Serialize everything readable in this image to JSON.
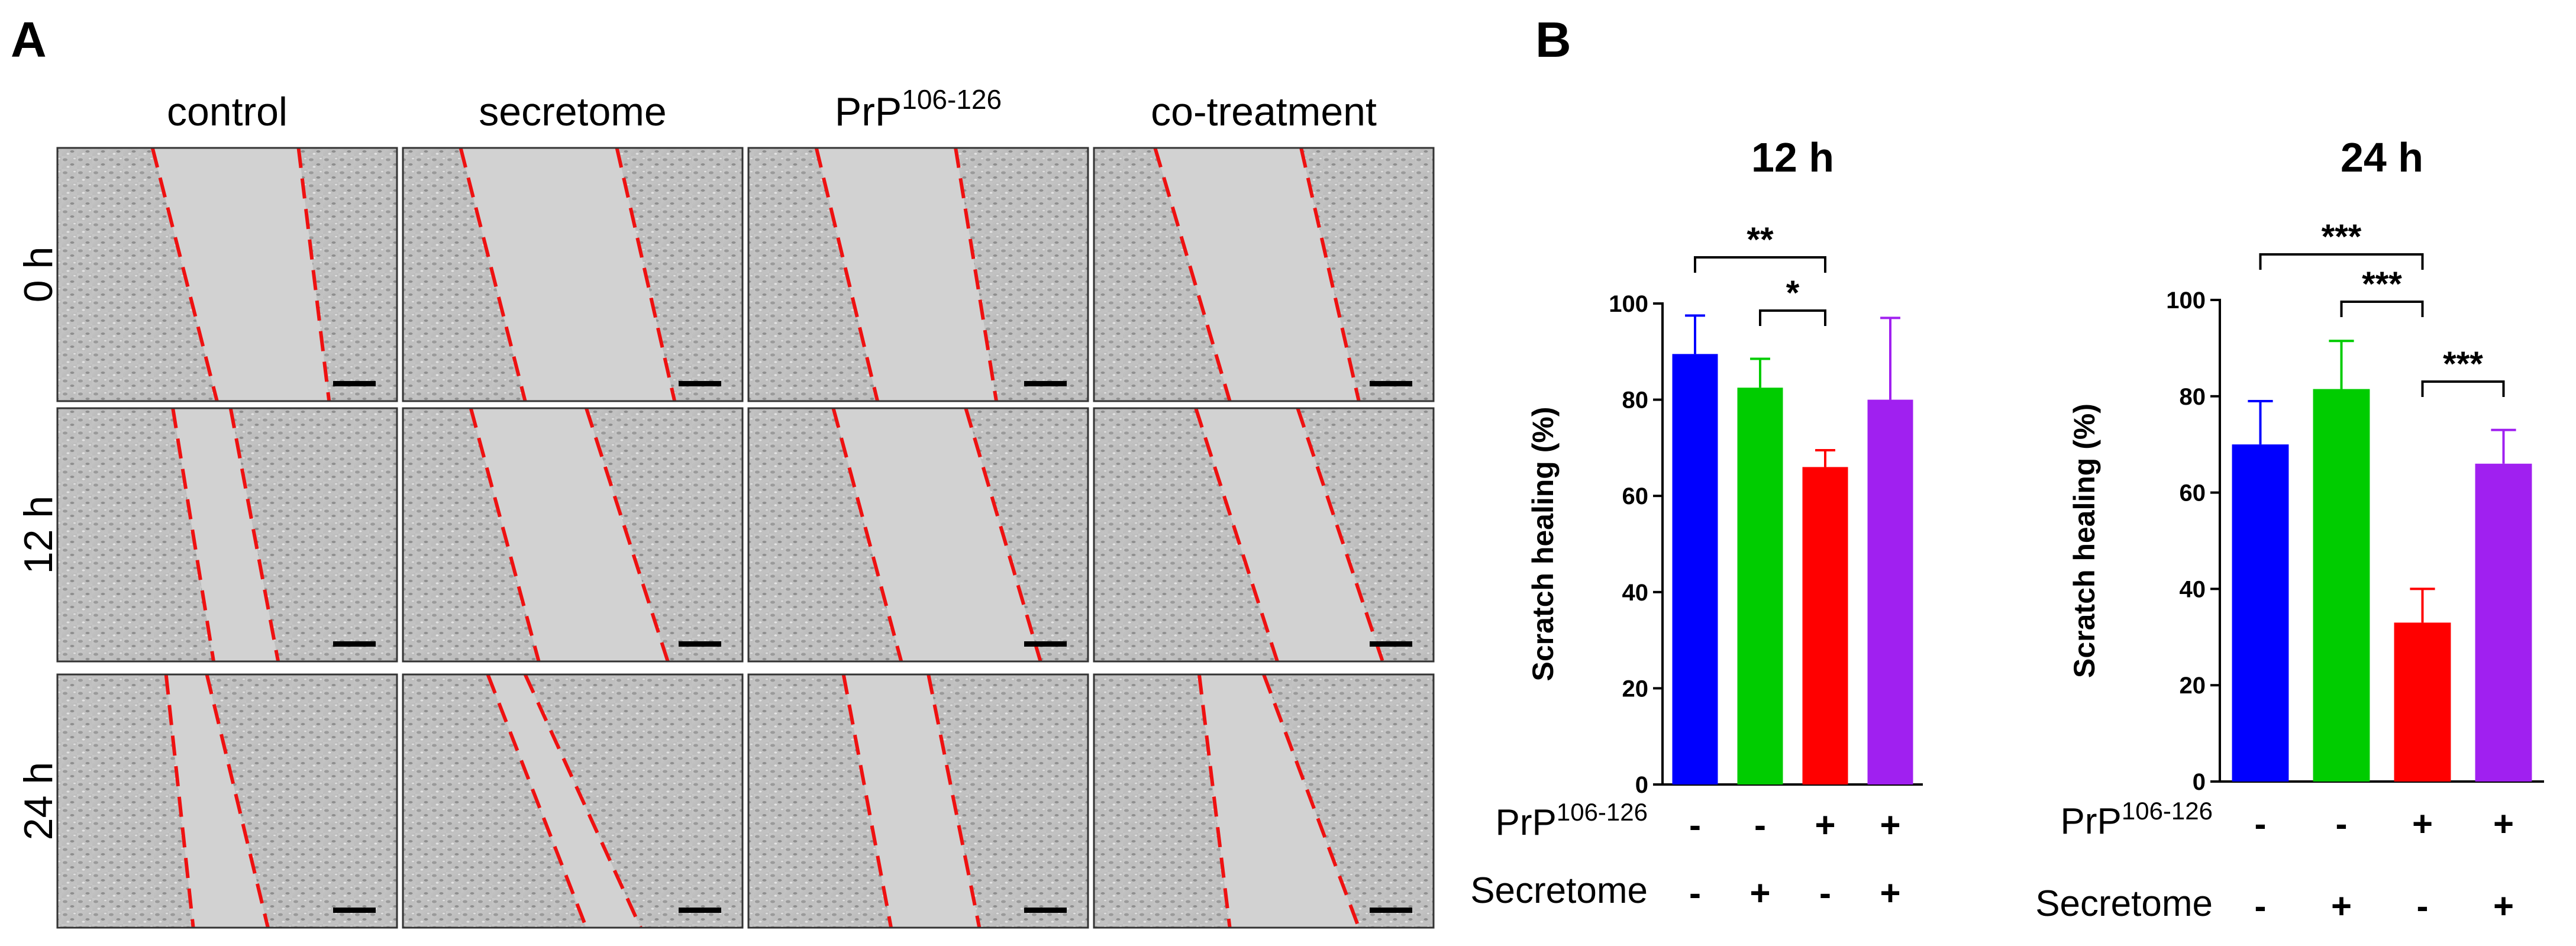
{
  "panel_a": {
    "label": "A",
    "columns": [
      "control",
      "secretome",
      "PrP106-126",
      "co-treatment"
    ],
    "column_supers": [
      "",
      "",
      "106-126",
      ""
    ],
    "column_bases": [
      "control",
      "secretome",
      "PrP",
      "co-treatment"
    ],
    "rows": [
      "0 h",
      "12 h",
      "24 h"
    ]
  },
  "panel_b": {
    "label": "B"
  },
  "chart_data": [
    {
      "type": "bar",
      "title": "12 h",
      "ylabel": "Scratch healing (%)",
      "ylim": [
        0,
        100
      ],
      "yticks": [
        0,
        20,
        40,
        60,
        80,
        100
      ],
      "categories": [
        "PrP106-126 - / Secretome -",
        "PrP106-126 - / Secretome +",
        "PrP106-126 + / Secretome -",
        "PrP106-126 + / Secretome +"
      ],
      "values": [
        89.5,
        82.5,
        66,
        80
      ],
      "errors": [
        8,
        6,
        3.5,
        17
      ],
      "colors": [
        "#0000ff",
        "#00cc00",
        "#ff0000",
        "#a020f0"
      ],
      "significance": [
        {
          "from": 0,
          "to": 2,
          "label": "**"
        },
        {
          "from": 1,
          "to": 2,
          "label": "*"
        }
      ],
      "factors": [
        {
          "name": "PrP",
          "super": "106-126",
          "levels": [
            "-",
            "-",
            "+",
            "+"
          ]
        },
        {
          "name": "Secretome",
          "super": "",
          "levels": [
            "-",
            "+",
            "-",
            "+"
          ]
        }
      ],
      "grid": false
    },
    {
      "type": "bar",
      "title": "24 h",
      "ylabel": "Scratch healing (%)",
      "ylim": [
        0,
        100
      ],
      "yticks": [
        0,
        20,
        40,
        60,
        80,
        100
      ],
      "categories": [
        "PrP106-126 - / Secretome -",
        "PrP106-126 - / Secretome +",
        "PrP106-126 + / Secretome -",
        "PrP106-126 + / Secretome +"
      ],
      "values": [
        70,
        81.5,
        33,
        66
      ],
      "errors": [
        9,
        10,
        7,
        7
      ],
      "colors": [
        "#0000ff",
        "#00cc00",
        "#ff0000",
        "#a020f0"
      ],
      "significance": [
        {
          "from": 0,
          "to": 2,
          "label": "***"
        },
        {
          "from": 1,
          "to": 2,
          "label": "***"
        },
        {
          "from": 2,
          "to": 3,
          "label": "***"
        }
      ],
      "factors": [
        {
          "name": "PrP",
          "super": "106-126",
          "levels": [
            "-",
            "-",
            "+",
            "+"
          ]
        },
        {
          "name": "Secretome",
          "super": "",
          "levels": [
            "-",
            "+",
            "-",
            "+"
          ]
        }
      ],
      "grid": false
    }
  ]
}
